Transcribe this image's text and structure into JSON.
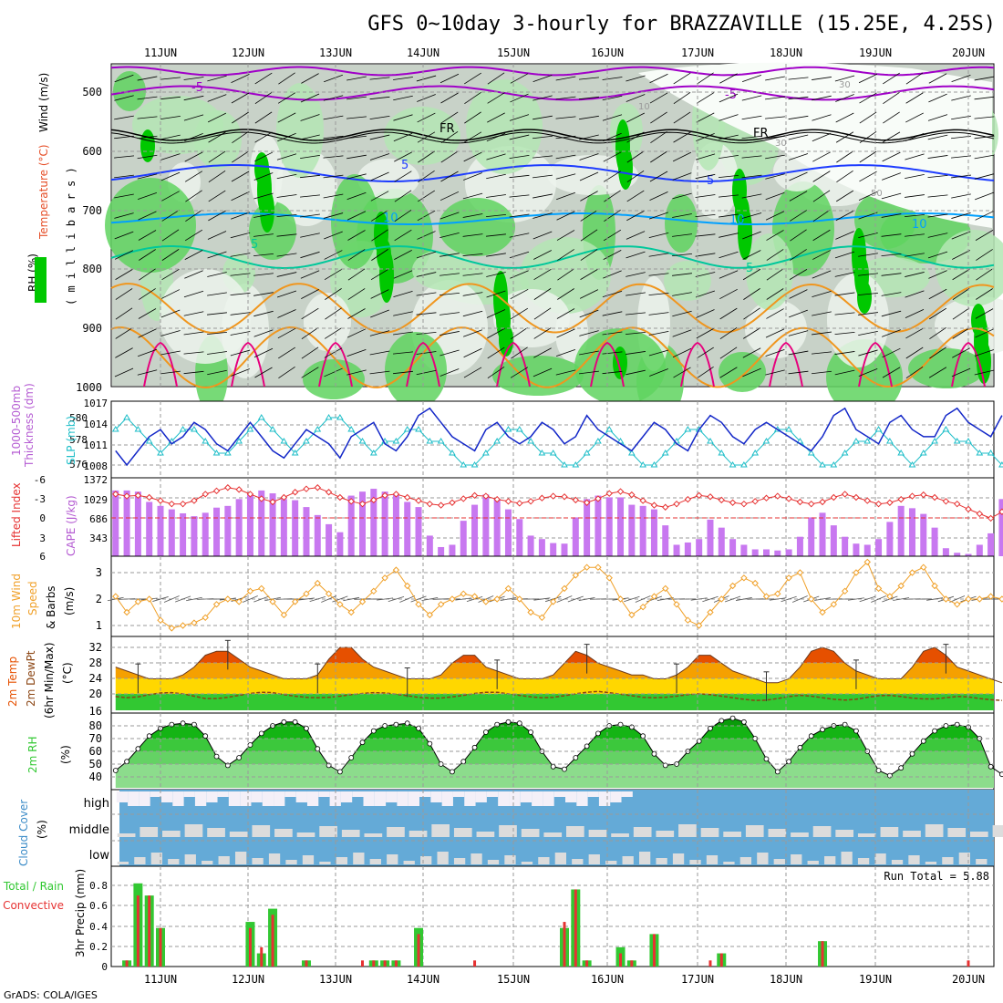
{
  "title": "GFS 0~10day 3-hourly for BRAZZAVILLE (15.25E, 4.25S)",
  "footer": "GrADS: COLA/IGES",
  "days": [
    "11JUN",
    "12JUN",
    "13JUN",
    "14JUN",
    "15JUN",
    "16JUN",
    "17JUN",
    "18JUN",
    "19JUN",
    "20JUN"
  ],
  "colors": {
    "green_dark": "#00c800",
    "green_mid": "#5fd35f",
    "green_light": "#b4e6b4",
    "gray": "#c8d2c8",
    "purple": "#a000c8",
    "blue": "#1e3cff",
    "cyan": "#00a0ff",
    "teal": "#00c89b",
    "orange": "#f0961e",
    "magenta": "#e6007d",
    "slp": "#1428c8",
    "thickness": "#1ebec8",
    "cape": "#c878f0",
    "lifted": "#e63232",
    "wind10": "#f0a028",
    "temp_hi": "#e65000",
    "temp_mid": "#f5a000",
    "temp_low": "#ffd700",
    "temp_base": "#32c832",
    "dew": "#8b4513",
    "rh": "#32c832",
    "cloud": "#64aad7",
    "cloud_gap": "#dcdcdc",
    "precip_total": "#32c832",
    "precip_conv": "#e63232"
  },
  "panels": {
    "upper": {
      "labels": [
        "Wind (m/s)",
        "Temperature (°C)",
        "RH (%)",
        "( m i l l i b a r s )"
      ],
      "y_ticks": [
        "500",
        "600",
        "700",
        "800",
        "900",
        "1000"
      ],
      "contour_labels": [
        "-5",
        "-5",
        "FR",
        "FR",
        "5",
        "5",
        "10",
        "10",
        "5",
        "5",
        "10",
        "10",
        "30",
        "30",
        "50"
      ]
    },
    "slp_thickness": {
      "labels": [
        "1000-500mb",
        "Thickness (dm)",
        "SLP (mb)"
      ],
      "left_ticks": [
        "580",
        "578",
        "576"
      ],
      "right_ticks": [
        "1017",
        "1014",
        "1011",
        "1008"
      ]
    },
    "cape_li": {
      "labels": [
        "Lifted Index",
        "CAPE (J/kg)"
      ],
      "left_ticks": [
        "-6",
        "-3",
        "0",
        "3",
        "6"
      ],
      "right_ticks": [
        "1372",
        "1029",
        "686",
        "343"
      ]
    },
    "wind10": {
      "labels": [
        "10m Wind",
        "Speed",
        "& Barbs",
        "(m/s)"
      ],
      "y_ticks": [
        "3",
        "2",
        "1"
      ]
    },
    "temp2m": {
      "labels": [
        "2m Temp",
        "2m DewPt",
        "(6hr Min/Max)",
        "(°C)"
      ],
      "y_ticks": [
        "32",
        "28",
        "24",
        "20",
        "16"
      ]
    },
    "rh2m": {
      "labels": [
        "2m RH",
        "(%)"
      ],
      "y_ticks": [
        "80",
        "70",
        "60",
        "50",
        "40"
      ]
    },
    "cloud": {
      "labels": [
        "Cloud Cover",
        "(%)"
      ],
      "levels": [
        "high",
        "middle",
        "low"
      ]
    },
    "precip": {
      "labels": [
        "Total / Rain",
        "Convective",
        "3hr Precip (mm)"
      ],
      "y_ticks": [
        "0.8",
        "0.6",
        "0.4",
        "0.2",
        "0"
      ],
      "run_total": "Run Total = 5.88"
    }
  },
  "chart_data": {
    "type": "meteogram",
    "x_unit": "3-hourly steps starting 10JUN 12Z",
    "series": [
      {
        "name": "SLP (mb)",
        "values": [
          1010,
          1008,
          1010,
          1012,
          1013,
          1011,
          1012,
          1014,
          1013,
          1011,
          1010,
          1012,
          1014,
          1012,
          1010,
          1009,
          1011,
          1013,
          1012,
          1011,
          1009,
          1012,
          1013,
          1014,
          1011,
          1010,
          1012,
          1015,
          1016,
          1014,
          1012,
          1011,
          1010,
          1013,
          1014,
          1012,
          1011,
          1012,
          1014,
          1013,
          1011,
          1012,
          1015,
          1013,
          1012,
          1011,
          1010,
          1012,
          1014,
          1013,
          1011,
          1010,
          1013,
          1015,
          1014,
          1012,
          1011,
          1013,
          1014,
          1013,
          1012,
          1011,
          1010,
          1012,
          1015,
          1016,
          1013,
          1012,
          1011,
          1014,
          1015,
          1013,
          1012,
          1012,
          1015,
          1016,
          1014,
          1013,
          1012,
          1015
        ]
      },
      {
        "name": "1000-500mb Thickness (dm)",
        "values": [
          579,
          580,
          579,
          578,
          577,
          578,
          579,
          579,
          578,
          577,
          577,
          578,
          579,
          580,
          579,
          578,
          577,
          578,
          579,
          580,
          580,
          579,
          578,
          577,
          578,
          578,
          579,
          579,
          578,
          578,
          577,
          576,
          576,
          577,
          578,
          579,
          579,
          578,
          577,
          577,
          576,
          576,
          577,
          578,
          579,
          578,
          577,
          576,
          576,
          577,
          578,
          579,
          579,
          578,
          577,
          576,
          576,
          577,
          578,
          579,
          579,
          578,
          577,
          576,
          576,
          577,
          578,
          578,
          579,
          578,
          577,
          576,
          577,
          578,
          579,
          578,
          578,
          577,
          577,
          576
        ]
      },
      {
        "name": "CAPE (J/kg)",
        "values": [
          1150,
          1150,
          1130,
          950,
          880,
          820,
          750,
          700,
          760,
          850,
          880,
          1000,
          1080,
          1150,
          1100,
          1000,
          980,
          860,
          720,
          560,
          420,
          1060,
          1130,
          1180,
          1130,
          1080,
          950,
          860,
          360,
          160,
          200,
          620,
          900,
          1080,
          1000,
          820,
          650,
          360,
          300,
          230,
          220,
          680,
          1000,
          1060,
          1030,
          1030,
          900,
          880,
          820,
          540,
          200,
          240,
          300,
          640,
          500,
          300,
          200,
          120,
          120,
          100,
          120,
          340,
          680,
          760,
          540,
          340,
          220,
          200,
          300,
          600,
          880,
          840,
          740,
          500,
          140,
          60,
          40,
          200,
          400,
          1000
        ]
      },
      {
        "name": "Lifted Index",
        "values": [
          -3.5,
          -3.2,
          -3.3,
          -3.0,
          -2.5,
          -2.0,
          -2.0,
          -2.5,
          -3.5,
          -4.0,
          -4.5,
          -4.2,
          -3.5,
          -2.8,
          -2.3,
          -3.0,
          -3.8,
          -4.3,
          -4.5,
          -3.8,
          -3.0,
          -2.4,
          -2.0,
          -2.6,
          -3.3,
          -3.5,
          -3.0,
          -2.5,
          -2.0,
          -1.8,
          -2.2,
          -2.8,
          -3.3,
          -3.2,
          -2.7,
          -2.4,
          -2.1,
          -2.4,
          -2.9,
          -3.2,
          -3.1,
          -2.6,
          -2.2,
          -2.8,
          -3.6,
          -3.9,
          -3.4,
          -2.5,
          -1.8,
          -1.5,
          -2.0,
          -2.7,
          -3.3,
          -3.1,
          -2.6,
          -2.2,
          -2.0,
          -2.4,
          -2.9,
          -3.2,
          -2.8,
          -2.3,
          -2.0,
          -2.3,
          -3.0,
          -3.5,
          -3.0,
          -2.5,
          -2.0,
          -2.2,
          -2.7,
          -3.2,
          -3.4,
          -3.0,
          -2.4,
          -2.0,
          -1.2,
          -0.5,
          0.2,
          -0.8
        ]
      },
      {
        "name": "10m Wind Speed (m/s)",
        "values": [
          2.1,
          1.5,
          1.9,
          2.0,
          1.2,
          0.9,
          1.0,
          1.1,
          1.3,
          1.8,
          2.0,
          1.9,
          2.3,
          2.4,
          1.9,
          1.4,
          1.9,
          2.2,
          2.6,
          2.2,
          1.8,
          1.5,
          1.9,
          2.3,
          2.8,
          3.1,
          2.5,
          1.8,
          1.4,
          1.8,
          2.0,
          2.2,
          2.1,
          1.9,
          2.0,
          2.4,
          2.0,
          1.5,
          1.3,
          1.9,
          2.4,
          2.9,
          3.2,
          3.2,
          2.8,
          2.0,
          1.4,
          1.7,
          2.1,
          2.4,
          1.8,
          1.2,
          1.0,
          1.5,
          2.0,
          2.5,
          2.8,
          2.6,
          2.1,
          2.2,
          2.8,
          3.0,
          2.0,
          1.5,
          1.8,
          2.3,
          3.0,
          3.4,
          2.4,
          2.1,
          2.5,
          3.0,
          3.2,
          2.5,
          2.0,
          1.8,
          2.0,
          2.0,
          2.1,
          2.0
        ]
      },
      {
        "name": "2m Temp (°C)",
        "values": [
          27,
          26,
          25,
          24,
          24,
          24,
          25,
          27,
          30,
          31,
          31,
          29,
          27,
          26,
          25,
          24,
          24,
          24,
          25,
          29,
          32,
          32,
          29,
          27,
          26,
          25,
          24,
          24,
          24,
          25,
          28,
          30,
          30,
          27,
          26,
          25,
          24,
          24,
          24,
          25,
          28,
          31,
          30,
          28,
          27,
          26,
          25,
          25,
          24,
          24,
          25,
          27,
          30,
          30,
          28,
          26,
          25,
          24,
          23,
          23,
          24,
          27,
          31,
          32,
          31,
          28,
          26,
          25,
          24,
          24,
          24,
          27,
          31,
          32,
          30,
          27,
          26,
          25,
          24,
          23
        ]
      },
      {
        "name": "2m DewPt (°C)",
        "values": [
          19.5,
          19.2,
          19.4,
          20.0,
          20.4,
          20.5,
          20.2,
          19.6,
          19.0,
          19.0,
          19.3,
          19.8,
          20.3,
          20.6,
          20.5,
          20.0,
          19.6,
          19.3,
          19.2,
          19.3,
          19.6,
          20.0,
          20.3,
          20.5,
          20.4,
          20.1,
          19.7,
          19.3,
          19.1,
          19.1,
          19.4,
          19.8,
          20.3,
          20.6,
          20.6,
          20.2,
          19.8,
          19.4,
          19.2,
          19.3,
          19.7,
          20.2,
          20.6,
          20.8,
          20.5,
          20.1,
          19.7,
          19.3,
          19.2,
          19.3,
          19.6,
          20.0,
          20.2,
          20.0,
          19.6,
          19.2,
          18.8,
          18.5,
          18.6,
          19.0,
          19.5,
          19.8,
          19.6,
          19.2,
          18.8,
          18.6,
          18.8,
          19.3,
          19.7,
          19.8,
          19.5,
          19.1,
          18.9,
          18.9,
          19.2,
          19.5,
          19.4,
          19.0,
          18.7,
          18.5
        ]
      },
      {
        "name": "2m RH (%)",
        "values": [
          45,
          52,
          62,
          72,
          78,
          81,
          82,
          81,
          72,
          56,
          49,
          55,
          65,
          74,
          80,
          83,
          83,
          78,
          62,
          49,
          44,
          55,
          67,
          76,
          80,
          81,
          82,
          78,
          66,
          50,
          44,
          52,
          63,
          75,
          81,
          83,
          82,
          75,
          60,
          48,
          46,
          55,
          64,
          74,
          80,
          81,
          79,
          72,
          58,
          49,
          50,
          60,
          68,
          78,
          84,
          86,
          83,
          70,
          54,
          44,
          52,
          63,
          72,
          77,
          80,
          81,
          76,
          60,
          45,
          41,
          47,
          58,
          68,
          76,
          80,
          81,
          79,
          70,
          48,
          42
        ]
      },
      {
        "name": "3hr Precip Total (mm)",
        "values": [
          0,
          0.06,
          0.82,
          0.7,
          0.38,
          0,
          0,
          0,
          0,
          0,
          0,
          0,
          0.44,
          0.13,
          0.57,
          0,
          0,
          0.06,
          0,
          0,
          0,
          0,
          0,
          0.06,
          0.06,
          0.06,
          0,
          0.38,
          0,
          0,
          0,
          0,
          0,
          0,
          0,
          0,
          0,
          0,
          0,
          0,
          0.38,
          0.76,
          0.06,
          0,
          0,
          0.19,
          0.06,
          0,
          0.32,
          0,
          0,
          0,
          0,
          0,
          0.13,
          0,
          0,
          0,
          0,
          0,
          0,
          0,
          0,
          0.25,
          0,
          0,
          0,
          0,
          0,
          0,
          0,
          0,
          0,
          0,
          0,
          0,
          0,
          0,
          0,
          0
        ]
      },
      {
        "name": "3hr Precip Convective (mm)",
        "values": [
          0,
          0.06,
          0.7,
          0.7,
          0.38,
          0,
          0,
          0,
          0,
          0,
          0,
          0,
          0.38,
          0.19,
          0.51,
          0,
          0,
          0.06,
          0,
          0,
          0,
          0,
          0.06,
          0.06,
          0.06,
          0.06,
          0,
          0.32,
          0,
          0,
          0,
          0,
          0.06,
          0,
          0,
          0,
          0,
          0,
          0,
          0,
          0.44,
          0.76,
          0.06,
          0,
          0,
          0.13,
          0.06,
          0,
          0.32,
          0,
          0,
          0,
          0,
          0.06,
          0.13,
          0,
          0,
          0,
          0,
          0,
          0,
          0,
          0,
          0.25,
          0,
          0,
          0,
          0,
          0,
          0,
          0,
          0,
          0,
          0,
          0,
          0,
          0.06,
          0,
          0,
          0
        ]
      }
    ]
  }
}
